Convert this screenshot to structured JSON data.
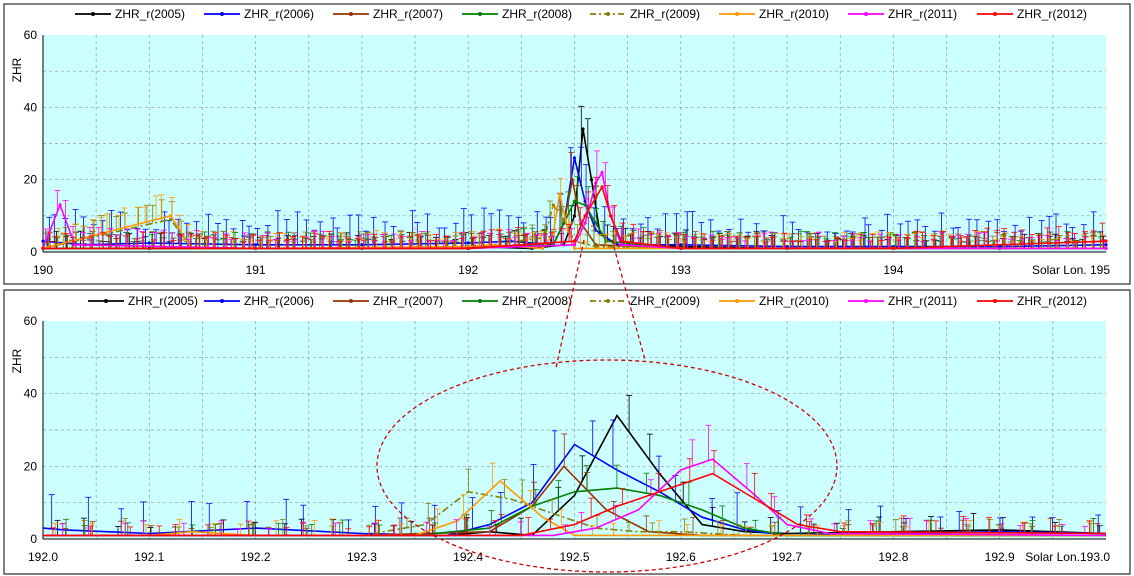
{
  "legend": [
    {
      "name": "ZHR_r(2005)",
      "color": "#000000",
      "dash": false
    },
    {
      "name": "ZHR_r(2006)",
      "color": "#0000ff",
      "dash": false
    },
    {
      "name": "ZHR_r(2007)",
      "color": "#993300",
      "dash": false
    },
    {
      "name": "ZHR_r(2008)",
      "color": "#008000",
      "dash": false
    },
    {
      "name": "ZHR_r(2009)",
      "color": "#808000",
      "dash": true
    },
    {
      "name": "ZHR_r(2010)",
      "color": "#ff9900",
      "dash": false
    },
    {
      "name": "ZHR_r(2011)",
      "color": "#ff00ff",
      "dash": false
    },
    {
      "name": "ZHR_r(2012)",
      "color": "#ff0000",
      "dash": false
    }
  ],
  "chart_data": [
    {
      "type": "line",
      "ylabel": "ZHR",
      "xlabel": "Solar Lon.",
      "xlim": [
        190,
        195
      ],
      "ylim": [
        0,
        60
      ],
      "grid": true,
      "legend_position": "top",
      "x_tick_labels": [
        "190",
        "191",
        "192",
        "193",
        "194",
        "Solar Lon. 195"
      ],
      "y_tick_labels": [
        "0",
        "20",
        "40",
        "60"
      ],
      "series": [
        {
          "name": "ZHR_r(2005)",
          "points": [
            [
              190,
              1
            ],
            [
              190.5,
              1
            ],
            [
              191,
              1
            ],
            [
              191.5,
              1
            ],
            [
              192,
              1.5
            ],
            [
              192.3,
              1
            ],
            [
              192.45,
              2
            ],
            [
              192.5,
              10
            ],
            [
              192.54,
              34
            ],
            [
              192.58,
              20
            ],
            [
              192.62,
              5
            ],
            [
              192.7,
              2
            ],
            [
              193,
              1.5
            ],
            [
              193.5,
              1
            ],
            [
              194,
              1
            ],
            [
              194.5,
              1
            ],
            [
              195,
              1
            ]
          ]
        },
        {
          "name": "ZHR_r(2006)",
          "points": [
            [
              190,
              3
            ],
            [
              190.2,
              2
            ],
            [
              190.5,
              2.5
            ],
            [
              191,
              2
            ],
            [
              191.5,
              2
            ],
            [
              192,
              2.5
            ],
            [
              192.2,
              3
            ],
            [
              192.4,
              2
            ],
            [
              192.45,
              8
            ],
            [
              192.5,
              26
            ],
            [
              192.55,
              14
            ],
            [
              192.6,
              6
            ],
            [
              192.7,
              2
            ],
            [
              193,
              2
            ],
            [
              193.5,
              1.5
            ],
            [
              194,
              1.5
            ],
            [
              194.5,
              1.5
            ],
            [
              195,
              2
            ]
          ]
        },
        {
          "name": "ZHR_r(2007)",
          "points": [
            [
              190,
              1
            ],
            [
              191,
              1
            ],
            [
              192,
              1
            ],
            [
              192.4,
              2
            ],
            [
              192.45,
              8
            ],
            [
              192.49,
              20
            ],
            [
              192.53,
              8
            ],
            [
              192.6,
              2
            ],
            [
              193,
              1
            ],
            [
              194,
              1
            ],
            [
              195,
              1
            ]
          ]
        },
        {
          "name": "ZHR_r(2008)",
          "points": [
            [
              190,
              1
            ],
            [
              191,
              1
            ],
            [
              192,
              1
            ],
            [
              192.4,
              2
            ],
            [
              192.45,
              8
            ],
            [
              192.5,
              14
            ],
            [
              192.55,
              13
            ],
            [
              192.6,
              8
            ],
            [
              192.65,
              3
            ],
            [
              193,
              1
            ],
            [
              194,
              1
            ],
            [
              195,
              1
            ]
          ]
        },
        {
          "name": "ZHR_r(2009)",
          "points": [
            [
              190,
              1
            ],
            [
              190.6,
              9
            ],
            [
              190.7,
              1
            ],
            [
              191,
              1
            ],
            [
              192,
              1
            ],
            [
              192.36,
              4
            ],
            [
              192.4,
              13
            ],
            [
              192.45,
              9
            ],
            [
              192.5,
              3
            ],
            [
              192.6,
              1.5
            ],
            [
              193,
              1
            ],
            [
              194,
              1
            ],
            [
              195,
              1
            ]
          ]
        },
        {
          "name": "ZHR_r(2010)",
          "points": [
            [
              190,
              1
            ],
            [
              190.6,
              10
            ],
            [
              190.7,
              1
            ],
            [
              191,
              1
            ],
            [
              192,
              1.5
            ],
            [
              192.1,
              2
            ],
            [
              192.35,
              1
            ],
            [
              192.4,
              5
            ],
            [
              192.43,
              16
            ],
            [
              192.47,
              6
            ],
            [
              192.5,
              1
            ],
            [
              193,
              1
            ],
            [
              194,
              1
            ],
            [
              195,
              1
            ]
          ]
        },
        {
          "name": "ZHR_r(2011)",
          "points": [
            [
              190,
              1
            ],
            [
              190.08,
              13
            ],
            [
              190.15,
              2
            ],
            [
              191,
              1
            ],
            [
              192,
              1
            ],
            [
              192.5,
              2
            ],
            [
              192.55,
              8
            ],
            [
              192.6,
              19
            ],
            [
              192.63,
              22
            ],
            [
              192.67,
              10
            ],
            [
              192.72,
              2
            ],
            [
              193,
              1
            ],
            [
              194,
              1
            ],
            [
              195,
              1
            ]
          ]
        },
        {
          "name": "ZHR_r(2012)",
          "points": [
            [
              190,
              1
            ],
            [
              191,
              1
            ],
            [
              192,
              1
            ],
            [
              192.5,
              3
            ],
            [
              192.55,
              10
            ],
            [
              192.6,
              15
            ],
            [
              192.63,
              18
            ],
            [
              192.67,
              10
            ],
            [
              192.72,
              3
            ],
            [
              193,
              1
            ],
            [
              194,
              1
            ],
            [
              195,
              3
            ]
          ]
        }
      ]
    },
    {
      "type": "line",
      "ylabel": "ZHR",
      "xlabel": "Solar Lon.",
      "xlim": [
        192.0,
        193.0
      ],
      "ylim": [
        0,
        60
      ],
      "grid": true,
      "legend_position": "top",
      "x_tick_labels": [
        "192.0",
        "192.1",
        "192.2",
        "192.3",
        "192.4",
        "192.5",
        "192.6",
        "192.7",
        "192.8",
        "192.9",
        "Solar Lon.193.0"
      ],
      "y_tick_labels": [
        "0",
        "20",
        "40",
        "60"
      ],
      "series": [
        {
          "name": "ZHR_r(2005)",
          "points": [
            [
              192.0,
              1
            ],
            [
              192.2,
              1
            ],
            [
              192.38,
              1
            ],
            [
              192.42,
              2
            ],
            [
              192.46,
              1
            ],
            [
              192.5,
              12
            ],
            [
              192.54,
              34
            ],
            [
              192.58,
              18
            ],
            [
              192.62,
              4
            ],
            [
              192.66,
              2
            ],
            [
              192.7,
              1.5
            ],
            [
              192.9,
              2.5
            ],
            [
              193.0,
              1.5
            ]
          ]
        },
        {
          "name": "ZHR_r(2006)",
          "points": [
            [
              192.0,
              3
            ],
            [
              192.02,
              2.5
            ],
            [
              192.1,
              1.5
            ],
            [
              192.2,
              3
            ],
            [
              192.3,
              1.5
            ],
            [
              192.38,
              1
            ],
            [
              192.42,
              4
            ],
            [
              192.46,
              10
            ],
            [
              192.5,
              26
            ],
            [
              192.54,
              19
            ],
            [
              192.58,
              13
            ],
            [
              192.62,
              6
            ],
            [
              192.66,
              2.5
            ],
            [
              192.7,
              1
            ],
            [
              192.9,
              2
            ],
            [
              193.0,
              1.5
            ]
          ]
        },
        {
          "name": "ZHR_r(2007)",
          "points": [
            [
              192.0,
              1
            ],
            [
              192.3,
              1
            ],
            [
              192.42,
              2
            ],
            [
              192.46,
              9
            ],
            [
              192.49,
              20
            ],
            [
              192.53,
              8
            ],
            [
              192.57,
              2
            ],
            [
              192.62,
              1
            ],
            [
              193.0,
              1
            ]
          ]
        },
        {
          "name": "ZHR_r(2008)",
          "points": [
            [
              192.0,
              1
            ],
            [
              192.35,
              1
            ],
            [
              192.42,
              3
            ],
            [
              192.46,
              9
            ],
            [
              192.5,
              13
            ],
            [
              192.54,
              14
            ],
            [
              192.58,
              12
            ],
            [
              192.62,
              8
            ],
            [
              192.66,
              3
            ],
            [
              192.7,
              1
            ],
            [
              193.0,
              1
            ]
          ]
        },
        {
          "name": "ZHR_r(2009)",
          "points": [
            [
              192.0,
              1
            ],
            [
              192.3,
              1
            ],
            [
              192.36,
              4
            ],
            [
              192.4,
              13
            ],
            [
              192.44,
              11
            ],
            [
              192.48,
              7
            ],
            [
              192.52,
              3
            ],
            [
              192.56,
              2
            ],
            [
              192.6,
              2
            ],
            [
              192.66,
              1
            ],
            [
              193.0,
              1
            ]
          ]
        },
        {
          "name": "ZHR_r(2010)",
          "points": [
            [
              192.0,
              1
            ],
            [
              192.1,
              1
            ],
            [
              192.14,
              2
            ],
            [
              192.2,
              1
            ],
            [
              192.35,
              1
            ],
            [
              192.39,
              5
            ],
            [
              192.43,
              16
            ],
            [
              192.47,
              6
            ],
            [
              192.5,
              1
            ],
            [
              192.6,
              1
            ],
            [
              193.0,
              1
            ]
          ]
        },
        {
          "name": "ZHR_r(2011)",
          "points": [
            [
              192.0,
              1
            ],
            [
              192.48,
              1
            ],
            [
              192.52,
              3
            ],
            [
              192.56,
              8
            ],
            [
              192.6,
              19
            ],
            [
              192.63,
              22
            ],
            [
              192.67,
              12
            ],
            [
              192.7,
              4
            ],
            [
              192.74,
              1.5
            ],
            [
              193.0,
              1
            ]
          ]
        },
        {
          "name": "ZHR_r(2012)",
          "points": [
            [
              192.0,
              1
            ],
            [
              192.45,
              1
            ],
            [
              192.5,
              4
            ],
            [
              192.54,
              9
            ],
            [
              192.58,
              13
            ],
            [
              192.63,
              18
            ],
            [
              192.67,
              11
            ],
            [
              192.71,
              4
            ],
            [
              192.75,
              2
            ],
            [
              193.0,
              1.5
            ]
          ]
        }
      ]
    }
  ]
}
